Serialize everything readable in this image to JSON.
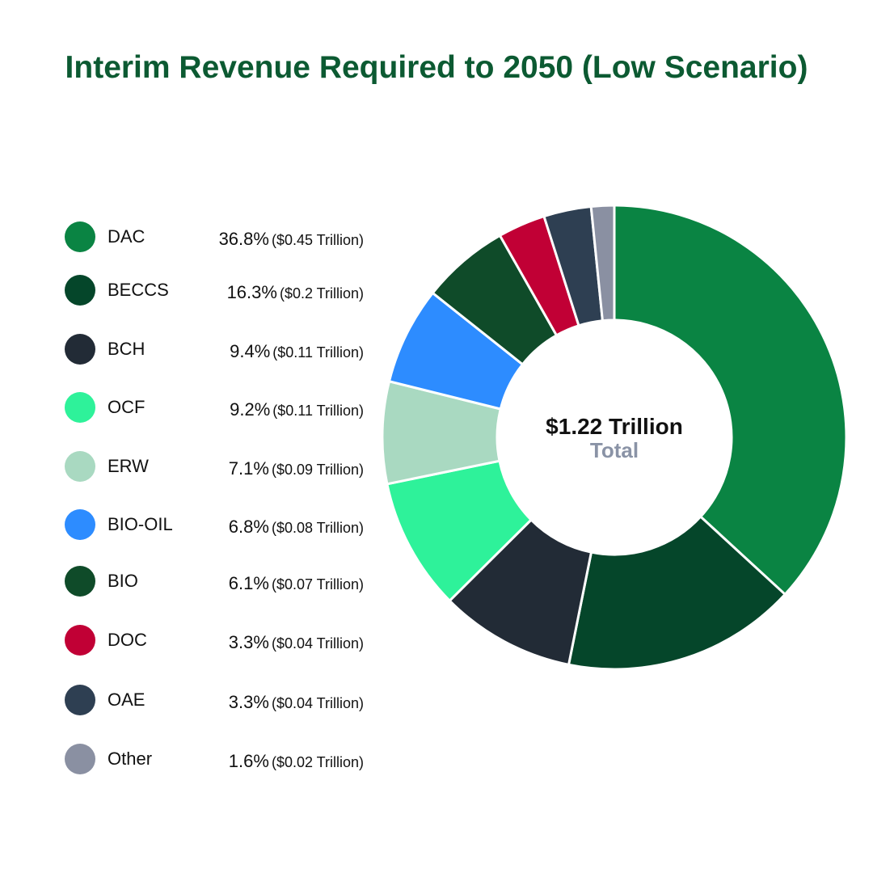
{
  "title": "Interim Revenue Required to 2050 (Low Scenario)",
  "center": {
    "total": "$1.22 Trillion",
    "label": "Total"
  },
  "legend": [
    {
      "label": "DAC",
      "percent": "36.8%",
      "amount": "($0.45 Trillion)",
      "color": "#0a8443"
    },
    {
      "label": "BECCS",
      "percent": "16.3%",
      "amount": "($0.2 Trillion)",
      "color": "#05462a"
    },
    {
      "label": "BCH",
      "percent": "9.4%",
      "amount": "($0.11 Trillion)",
      "color": "#222b36"
    },
    {
      "label": "OCF",
      "percent": "9.2%",
      "amount": "($0.11 Trillion)",
      "color": "#2ef29a"
    },
    {
      "label": "ERW",
      "percent": "7.1%",
      "amount": "($0.09 Trillion)",
      "color": "#a9d9c1"
    },
    {
      "label": "BIO-OIL",
      "percent": "6.8%",
      "amount": "($0.08 Trillion)",
      "color": "#2d8cff"
    },
    {
      "label": "BIO",
      "percent": "6.1%",
      "amount": "($0.07 Trillion)",
      "color": "#0f4b29"
    },
    {
      "label": "DOC",
      "percent": "3.3%",
      "amount": "($0.04 Trillion)",
      "color": "#c10035"
    },
    {
      "label": "OAE",
      "percent": "3.3%",
      "amount": "($0.04 Trillion)",
      "color": "#2e3f52"
    },
    {
      "label": "Other",
      "percent": "1.6%",
      "amount": "($0.02 Trillion)",
      "color": "#8a90a2"
    }
  ],
  "chart_data": {
    "type": "pie",
    "title": "Interim Revenue Required to 2050 (Low Scenario)",
    "categories": [
      "DAC",
      "BECCS",
      "BCH",
      "OCF",
      "ERW",
      "BIO-OIL",
      "BIO",
      "DOC",
      "OAE",
      "Other"
    ],
    "values": [
      36.8,
      16.3,
      9.4,
      9.2,
      7.1,
      6.8,
      6.1,
      3.3,
      3.3,
      1.6
    ],
    "amounts_trillion": [
      0.45,
      0.2,
      0.11,
      0.11,
      0.09,
      0.08,
      0.07,
      0.04,
      0.04,
      0.02
    ],
    "total_trillion": 1.22,
    "colors": [
      "#0a8443",
      "#05462a",
      "#222b36",
      "#2ef29a",
      "#a9d9c1",
      "#2d8cff",
      "#0f4b29",
      "#c10035",
      "#2e3f52",
      "#8a90a2"
    ],
    "donut": true,
    "legend_position": "left"
  }
}
